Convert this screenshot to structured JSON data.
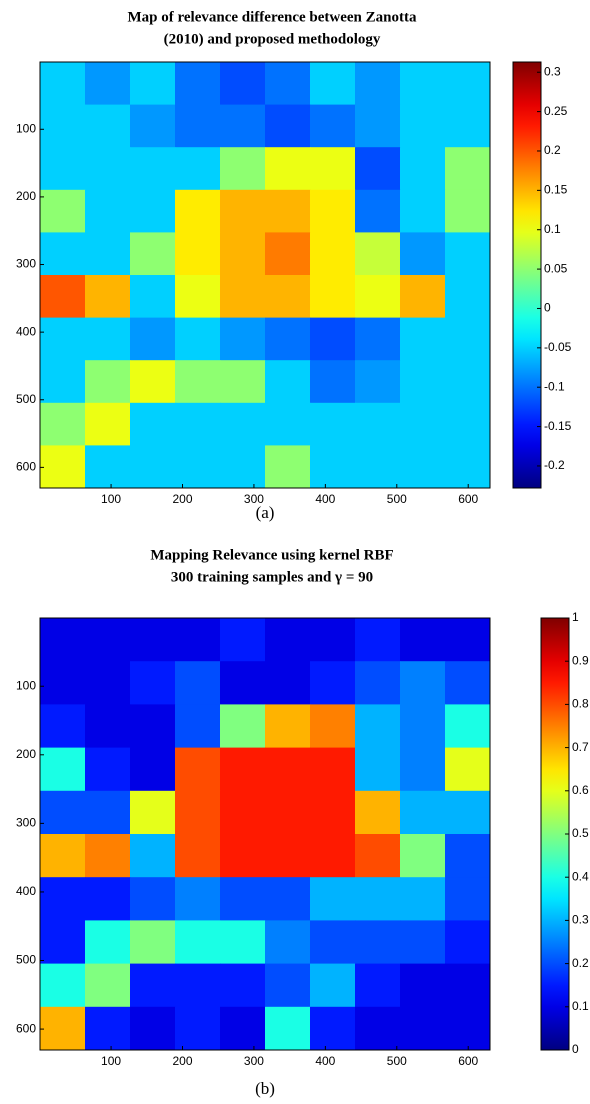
{
  "chart_data": [
    {
      "type": "heatmap",
      "title": [
        "Map of relevance difference between Zanotta",
        "(2010) and proposed methodology"
      ],
      "caption": "(a)",
      "colormap": "jet",
      "xlim": [
        0.5,
        630.5
      ],
      "ylim": [
        0.5,
        630.5
      ],
      "xticks": [
        100,
        200,
        300,
        400,
        500,
        600
      ],
      "yticks": [
        100,
        200,
        300,
        400,
        500,
        600
      ],
      "clim": [
        -0.228,
        0.313
      ],
      "cticks": [
        0.3,
        0.25,
        0.2,
        0.15,
        0.1,
        0.05,
        0,
        -0.05,
        -0.1,
        -0.15,
        -0.2
      ],
      "z": [
        [
          -0.05,
          -0.08,
          -0.05,
          -0.1,
          -0.12,
          -0.1,
          -0.05,
          -0.08,
          -0.05,
          -0.05
        ],
        [
          -0.05,
          -0.05,
          -0.08,
          -0.1,
          -0.1,
          -0.12,
          -0.1,
          -0.08,
          -0.05,
          -0.05
        ],
        [
          -0.05,
          -0.05,
          -0.05,
          -0.05,
          0.05,
          0.1,
          0.1,
          -0.12,
          -0.05,
          0.05
        ],
        [
          0.05,
          -0.05,
          -0.05,
          0.12,
          0.15,
          0.15,
          0.12,
          -0.1,
          -0.05,
          0.05
        ],
        [
          -0.05,
          -0.05,
          0.05,
          0.12,
          0.15,
          0.18,
          0.12,
          0.08,
          -0.08,
          -0.05
        ],
        [
          0.2,
          0.15,
          -0.05,
          0.1,
          0.15,
          0.15,
          0.12,
          0.1,
          0.15,
          -0.05
        ],
        [
          -0.05,
          -0.05,
          -0.08,
          -0.05,
          -0.08,
          -0.1,
          -0.12,
          -0.1,
          -0.05,
          -0.05
        ],
        [
          -0.05,
          0.05,
          0.1,
          0.05,
          0.05,
          -0.05,
          -0.1,
          -0.08,
          -0.05,
          -0.05
        ],
        [
          0.05,
          0.1,
          -0.05,
          -0.05,
          -0.05,
          -0.05,
          -0.05,
          -0.05,
          -0.05,
          -0.05
        ],
        [
          0.1,
          -0.05,
          -0.05,
          -0.05,
          -0.05,
          0.05,
          -0.05,
          -0.05,
          -0.05,
          -0.05
        ]
      ]
    },
    {
      "type": "heatmap",
      "title": [
        "Mapping  Relevance  using  kernel  RBF",
        "300 training samples and γ = 90"
      ],
      "caption": "(b)",
      "colormap": "jet",
      "xlim": [
        0.5,
        630.5
      ],
      "ylim": [
        0.5,
        630.5
      ],
      "xticks": [
        100,
        200,
        300,
        400,
        500,
        600
      ],
      "yticks": [
        100,
        200,
        300,
        400,
        500,
        600
      ],
      "clim": [
        0,
        1
      ],
      "cticks": [
        1,
        0.9,
        0.8,
        0.7,
        0.6,
        0.5,
        0.4,
        0.3,
        0.2,
        0.1,
        0
      ],
      "z": [
        [
          0.1,
          0.1,
          0.1,
          0.1,
          0.15,
          0.1,
          0.1,
          0.15,
          0.1,
          0.1
        ],
        [
          0.1,
          0.1,
          0.15,
          0.2,
          0.1,
          0.1,
          0.15,
          0.2,
          0.25,
          0.2
        ],
        [
          0.15,
          0.1,
          0.1,
          0.2,
          0.5,
          0.7,
          0.75,
          0.3,
          0.25,
          0.4
        ],
        [
          0.4,
          0.15,
          0.1,
          0.8,
          0.85,
          0.85,
          0.85,
          0.3,
          0.25,
          0.6
        ],
        [
          0.2,
          0.2,
          0.6,
          0.8,
          0.85,
          0.85,
          0.85,
          0.7,
          0.3,
          0.3
        ],
        [
          0.7,
          0.75,
          0.3,
          0.8,
          0.85,
          0.85,
          0.85,
          0.8,
          0.5,
          0.2
        ],
        [
          0.15,
          0.15,
          0.2,
          0.25,
          0.2,
          0.2,
          0.3,
          0.3,
          0.3,
          0.2
        ],
        [
          0.15,
          0.4,
          0.5,
          0.4,
          0.4,
          0.25,
          0.2,
          0.2,
          0.2,
          0.15
        ],
        [
          0.4,
          0.5,
          0.15,
          0.15,
          0.15,
          0.2,
          0.3,
          0.15,
          0.1,
          0.1
        ],
        [
          0.7,
          0.15,
          0.1,
          0.15,
          0.1,
          0.4,
          0.15,
          0.1,
          0.1,
          0.1
        ]
      ]
    }
  ]
}
